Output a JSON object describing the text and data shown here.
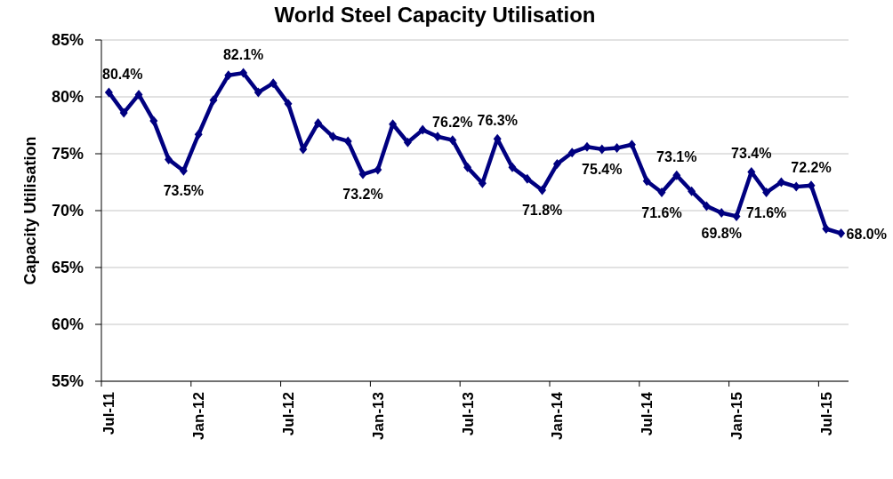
{
  "chart_data": {
    "type": "line",
    "title": "World Steel Capacity Utilisation",
    "ylabel": "Capacity Utilisation",
    "categories": [
      "Jul-11",
      null,
      null,
      null,
      null,
      null,
      "Jan-12",
      null,
      null,
      null,
      null,
      null,
      "Jul-12",
      null,
      null,
      null,
      null,
      null,
      "Jan-13",
      null,
      null,
      null,
      null,
      null,
      "Jul-13",
      null,
      null,
      null,
      null,
      null,
      "Jan-14",
      null,
      null,
      null,
      null,
      null,
      "Jul-14",
      null,
      null,
      null,
      null,
      null,
      "Jan-15",
      null,
      null,
      null,
      null,
      null,
      "Jul-15",
      null
    ],
    "values": [
      80.4,
      78.6,
      80.2,
      77.9,
      74.5,
      73.5,
      76.7,
      79.7,
      81.9,
      82.1,
      80.4,
      81.2,
      79.4,
      75.4,
      77.7,
      76.5,
      76.1,
      73.2,
      73.6,
      77.6,
      76.0,
      77.1,
      76.5,
      76.2,
      73.8,
      72.4,
      76.3,
      73.8,
      72.8,
      71.8,
      74.1,
      75.1,
      75.6,
      75.4,
      75.5,
      75.8,
      72.6,
      71.6,
      73.1,
      71.7,
      70.4,
      69.8,
      69.5,
      73.4,
      71.6,
      72.5,
      72.1,
      72.2,
      68.4,
      68.0
    ],
    "value_labels": [
      "80.4%",
      null,
      null,
      null,
      null,
      "73.5%",
      null,
      null,
      null,
      "82.1%",
      null,
      null,
      null,
      null,
      null,
      null,
      null,
      "73.2%",
      null,
      null,
      null,
      null,
      null,
      "76.2%",
      null,
      null,
      "76.3%",
      null,
      null,
      "71.8%",
      null,
      null,
      null,
      "75.4%",
      null,
      null,
      null,
      "71.6%",
      "73.1%",
      null,
      null,
      "69.8%",
      null,
      "73.4%",
      "71.6%",
      null,
      null,
      "72.2%",
      null,
      "68.0%"
    ],
    "color": "#000080",
    "ylim": [
      55,
      85
    ],
    "yticks": [
      {
        "value": 55,
        "label": "55%"
      },
      {
        "value": 60,
        "label": "60%"
      },
      {
        "value": 65,
        "label": "65%"
      },
      {
        "value": 70,
        "label": "70%"
      },
      {
        "value": 75,
        "label": "75%"
      },
      {
        "value": 80,
        "label": "80%"
      },
      {
        "value": 85,
        "label": "85%"
      }
    ],
    "grid": "y",
    "marker": "diamond",
    "line_style": "solid"
  }
}
